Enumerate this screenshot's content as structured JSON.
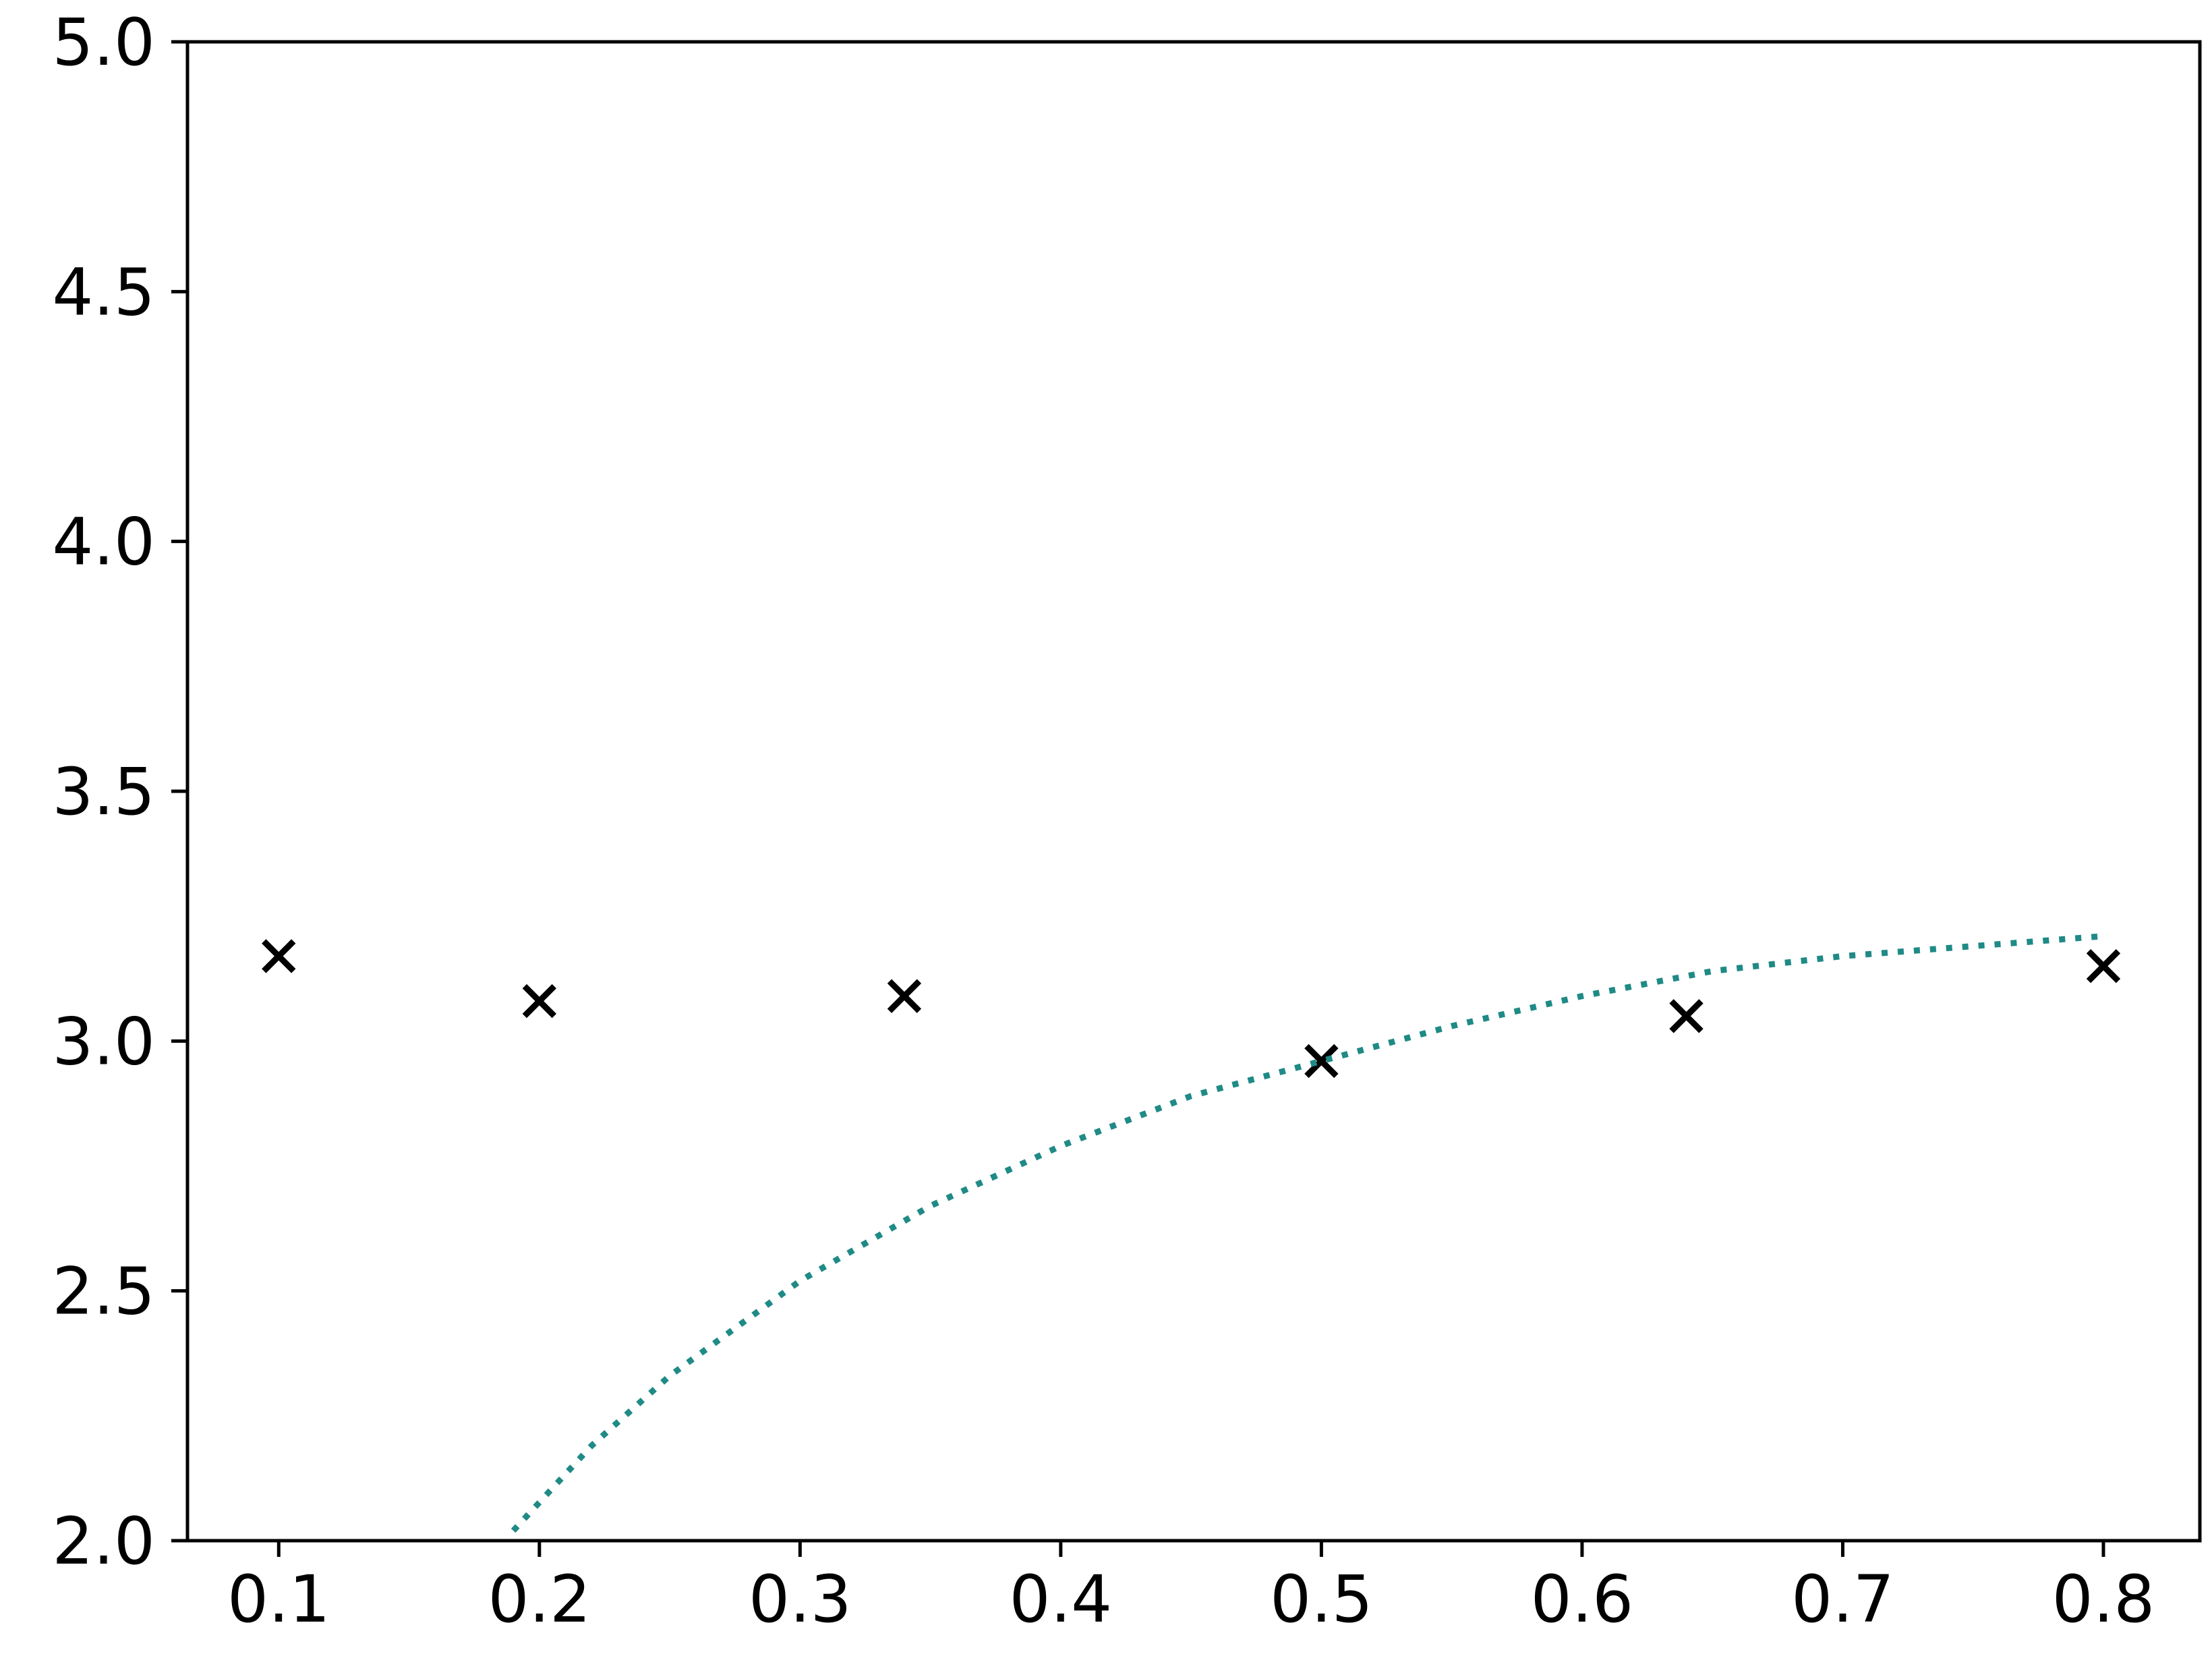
{
  "chart_data": {
    "type": "scatter",
    "title": "",
    "xlabel": "",
    "ylabel": "",
    "xlim": [
      0.065,
      0.837
    ],
    "ylim": [
      2.0,
      5.0
    ],
    "grid": false,
    "x_ticks": [
      0.1,
      0.2,
      0.3,
      0.4,
      0.5,
      0.6,
      0.7,
      0.8
    ],
    "x_tick_labels": [
      "0.1",
      "0.2",
      "0.3",
      "0.4",
      "0.5",
      "0.6",
      "0.7",
      "0.8"
    ],
    "y_ticks": [
      2.0,
      2.5,
      3.0,
      3.5,
      4.0,
      4.5,
      5.0
    ],
    "y_tick_labels": [
      "2.0",
      "2.5",
      "3.0",
      "3.5",
      "4.0",
      "4.5",
      "5.0"
    ],
    "series": [
      {
        "kind": "scatter",
        "marker": "x",
        "color": "#000000",
        "x": [
          0.1,
          0.2,
          0.34,
          0.5,
          0.64,
          0.8
        ],
        "y": [
          3.17,
          3.08,
          3.09,
          2.96,
          3.05,
          3.15
        ]
      },
      {
        "kind": "line",
        "style": "dotted",
        "color": "#1f8a86",
        "x": [
          0.19,
          0.22,
          0.25,
          0.3,
          0.35,
          0.4,
          0.45,
          0.5,
          0.55,
          0.6,
          0.65,
          0.7,
          0.75,
          0.8
        ],
        "y": [
          2.02,
          2.19,
          2.33,
          2.52,
          2.67,
          2.79,
          2.89,
          2.96,
          3.03,
          3.09,
          3.14,
          3.17,
          3.19,
          3.21
        ]
      }
    ]
  }
}
